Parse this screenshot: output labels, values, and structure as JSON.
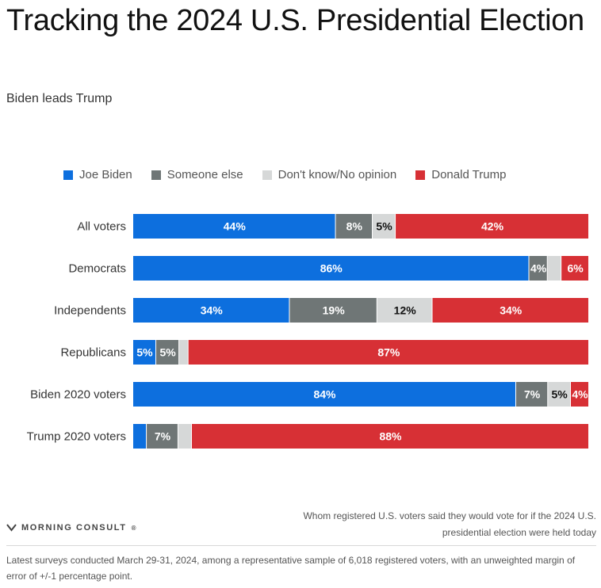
{
  "title": "Tracking the 2024 U.S. Presidential Election",
  "subtitle": "Biden leads Trump",
  "legend": [
    {
      "label": "Joe Biden",
      "color": "#0d6fde"
    },
    {
      "label": "Someone else",
      "color": "#6f7676"
    },
    {
      "label": "Don't know/No opinion",
      "color": "#d6d8d8"
    },
    {
      "label": "Donald Trump",
      "color": "#d73035"
    }
  ],
  "chart_data": {
    "type": "bar",
    "orientation": "horizontal-stacked",
    "categories": [
      "All voters",
      "Democrats",
      "Independents",
      "Republicans",
      "Biden 2020 voters",
      "Trump 2020 voters"
    ],
    "series": [
      {
        "name": "Joe Biden",
        "color": "#0d6fde",
        "values": [
          44,
          86,
          34,
          5,
          84,
          3
        ],
        "labels": [
          "44%",
          "86%",
          "34%",
          "5%",
          "84%",
          ""
        ]
      },
      {
        "name": "Someone else",
        "color": "#6f7676",
        "values": [
          8,
          4,
          19,
          5,
          7,
          7
        ],
        "labels": [
          "8%",
          "4%",
          "19%",
          "5%",
          "7%",
          "7%"
        ]
      },
      {
        "name": "Don't know/No opinion",
        "color": "#d6d8d8",
        "values": [
          5,
          3,
          12,
          2,
          5,
          3
        ],
        "labels": [
          "5%",
          "",
          "12%",
          "",
          "5%",
          ""
        ]
      },
      {
        "name": "Donald Trump",
        "color": "#d73035",
        "values": [
          42,
          6,
          34,
          87,
          4,
          88
        ],
        "labels": [
          "42%",
          "6%",
          "34%",
          "87%",
          "4%",
          "88%"
        ]
      }
    ],
    "label_colors": [
      "#ffffff",
      "#ffffff",
      "#111111",
      "#ffffff"
    ],
    "grid": false,
    "legend_position": "top"
  },
  "footer": {
    "logo_text": "MORNING CONSULT",
    "logo_mark": "®",
    "chart_note": "Whom registered U.S. voters said they would vote for if the 2024 U.S. presidential election were held today",
    "footnote": "Latest surveys conducted March 29-31, 2024, among a representative sample of 6,018 registered voters, with an unweighted margin of error of +/-1 percentage point."
  }
}
